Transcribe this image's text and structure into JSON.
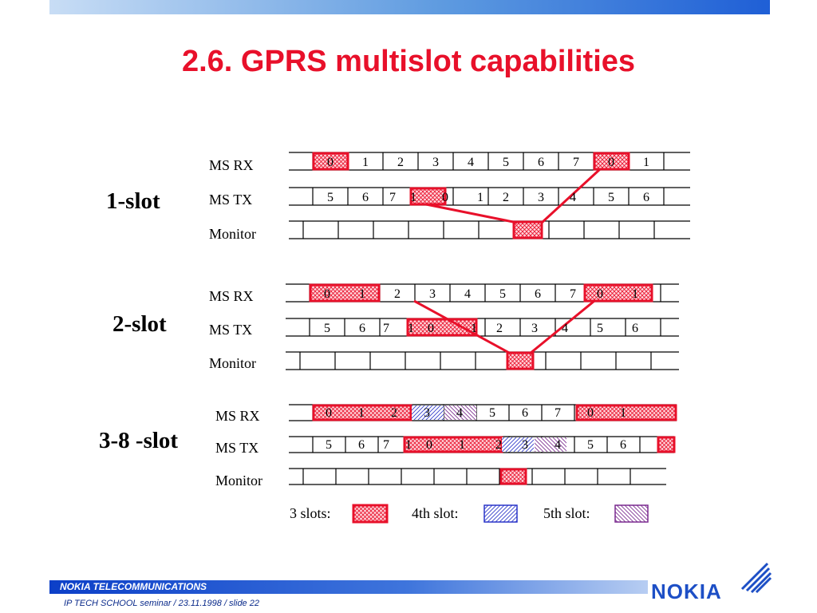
{
  "title": "2.6. GPRS multislot capabilities",
  "groups": [
    {
      "label": "1-slot",
      "rows": [
        "MS RX",
        "MS TX",
        "Monitor"
      ]
    },
    {
      "label": "2-slot",
      "rows": [
        "MS RX",
        "MS TX",
        "Monitor"
      ]
    },
    {
      "label": "3-8 -slot",
      "rows": [
        "MS RX",
        "MS TX",
        "Monitor"
      ]
    }
  ],
  "legend": {
    "three_slots": "3 slots:",
    "fourth_slot": "4th slot:",
    "fifth_slot": "5th slot:"
  },
  "colors": {
    "accent": "#e8102a",
    "fourth": "#2a35c9",
    "fifth": "#7a2a8f"
  },
  "footer": {
    "company": "NOKIA TELECOMMUNICATIONS",
    "seminar": "IP TECH SCHOOL seminar / 23.11.1998  /  slide  22",
    "logo": "NOKIA"
  }
}
